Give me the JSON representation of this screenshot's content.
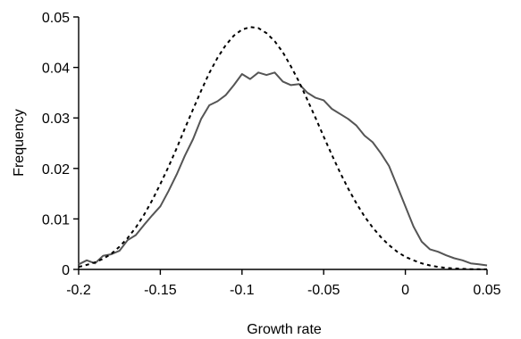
{
  "chart_data": {
    "type": "line",
    "title": "",
    "xlabel": "Growth rate",
    "ylabel": "Frequency",
    "xlim": [
      -0.2,
      0.05
    ],
    "ylim": [
      0,
      0.05
    ],
    "x_ticks": [
      -0.2,
      -0.15,
      -0.1,
      -0.05,
      0,
      0.05
    ],
    "y_ticks": [
      0,
      0.01,
      0.02,
      0.03,
      0.04,
      0.05
    ],
    "x_tick_labels": [
      "-0.2",
      "-0.15",
      "-0.1",
      "-0.05",
      "0",
      "0.05"
    ],
    "y_tick_labels": [
      "0",
      "0.01",
      "0.02",
      "0.03",
      "0.04",
      "0.05"
    ],
    "grid": false,
    "legend": "none",
    "series": [
      {
        "style": "solid",
        "color": "#555555",
        "x": [
          -0.2,
          -0.195,
          -0.19,
          -0.185,
          -0.18,
          -0.175,
          -0.17,
          -0.165,
          -0.16,
          -0.155,
          -0.15,
          -0.145,
          -0.14,
          -0.135,
          -0.13,
          -0.125,
          -0.12,
          -0.115,
          -0.11,
          -0.105,
          -0.1,
          -0.095,
          -0.09,
          -0.085,
          -0.08,
          -0.075,
          -0.07,
          -0.065,
          -0.06,
          -0.055,
          -0.05,
          -0.045,
          -0.04,
          -0.035,
          -0.03,
          -0.025,
          -0.02,
          -0.015,
          -0.01,
          -0.005,
          0,
          0.005,
          0.01,
          0.015,
          0.02,
          0.025,
          0.03,
          0.035,
          0.04,
          0.045,
          0.05
        ],
        "y": [
          0.001,
          0.0018,
          0.0012,
          0.0027,
          0.003,
          0.0037,
          0.0058,
          0.0068,
          0.0088,
          0.0107,
          0.0125,
          0.0155,
          0.0188,
          0.0225,
          0.0258,
          0.0298,
          0.0325,
          0.0333,
          0.0345,
          0.0365,
          0.0387,
          0.0377,
          0.039,
          0.0385,
          0.039,
          0.0372,
          0.0365,
          0.0367,
          0.035,
          0.034,
          0.0335,
          0.0318,
          0.0308,
          0.0298,
          0.0285,
          0.0265,
          0.0252,
          0.023,
          0.0205,
          0.0165,
          0.0125,
          0.0085,
          0.0055,
          0.004,
          0.0035,
          0.0028,
          0.0022,
          0.0018,
          0.0012,
          0.001,
          0.0008
        ]
      },
      {
        "style": "dashed",
        "color": "#000000",
        "x": [
          -0.2,
          -0.195,
          -0.19,
          -0.185,
          -0.18,
          -0.175,
          -0.17,
          -0.165,
          -0.16,
          -0.155,
          -0.15,
          -0.145,
          -0.14,
          -0.135,
          -0.13,
          -0.125,
          -0.12,
          -0.115,
          -0.11,
          -0.105,
          -0.1,
          -0.095,
          -0.09,
          -0.085,
          -0.08,
          -0.075,
          -0.07,
          -0.065,
          -0.06,
          -0.055,
          -0.05,
          -0.045,
          -0.04,
          -0.035,
          -0.03,
          -0.025,
          -0.02,
          -0.015,
          -0.01,
          -0.005,
          0,
          0.005,
          0.01,
          0.015,
          0.02,
          0.025,
          0.03,
          0.035,
          0.04,
          0.045,
          0.05
        ],
        "y": [
          0.0005,
          0.0009,
          0.0014,
          0.0021,
          0.0031,
          0.0045,
          0.0062,
          0.0083,
          0.0108,
          0.0137,
          0.0169,
          0.0203,
          0.024,
          0.0279,
          0.0317,
          0.0354,
          0.0389,
          0.0419,
          0.0444,
          0.0463,
          0.0475,
          0.048,
          0.0478,
          0.0468,
          0.0452,
          0.043,
          0.0402,
          0.0371,
          0.0336,
          0.03,
          0.0263,
          0.0227,
          0.0192,
          0.016,
          0.0131,
          0.0105,
          0.0083,
          0.0064,
          0.0048,
          0.0035,
          0.0025,
          0.0018,
          0.0012,
          0.0008,
          0.0005,
          0.0003,
          0.0002,
          0.0001,
          6e-05,
          3e-05,
          2e-05
        ]
      }
    ]
  }
}
